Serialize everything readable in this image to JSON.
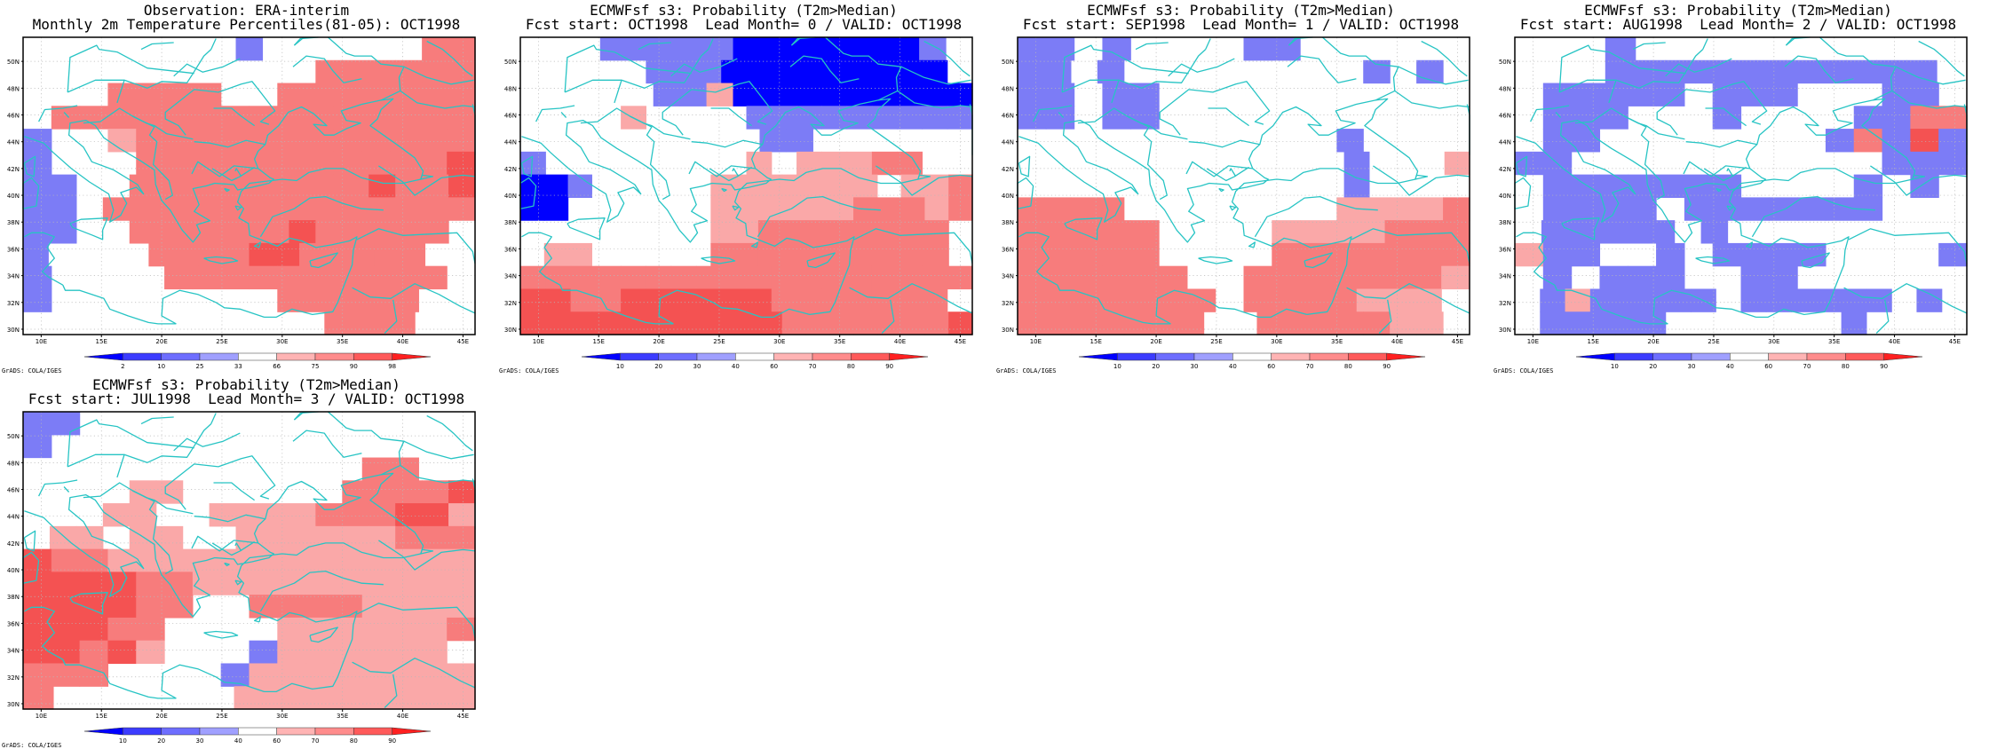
{
  "lat_labels": [
    "30N",
    "32N",
    "34N",
    "36N",
    "38N",
    "40N",
    "42N",
    "44N",
    "46N",
    "48N",
    "50N"
  ],
  "lon_labels": [
    "10E",
    "15E",
    "20E",
    "25E",
    "30E",
    "35E",
    "40E",
    "45E"
  ],
  "grads_credit": "GrADS: COLA/IGES",
  "colors": {
    "coast": "#27c4c4",
    "cells": {
      "-4": "#0000ff",
      "-3": "#4646ff",
      "-2": "#7c7cf6",
      "-1": "#aaaaf6",
      "1": "#faa8a8",
      "2": "#f77c7c",
      "3": "#f45252",
      "4": "#f01d1d",
      "5": "#ff0000"
    }
  },
  "panels": [
    {
      "title1": "Observation: ERA-interim",
      "title2": "Monthly 2m Temperature Percentiles(81-05): OCT1998",
      "colorbar": {
        "labels": [
          "2",
          "10",
          "25",
          "33",
          "66",
          "75",
          "90",
          "98"
        ]
      },
      "grid": [
        "00000000-00000022",
        "00000000000222222",
        "0002222002222222",
        "0222222222222222",
        "-001222222222222",
        "-000222222222223",
        "--002222222223223",
        "--022222222222222",
        "--002222223222220",
        "-00002222332222200",
        "-000022222222220",
        "-000000002222200",
        "000000000022200"
      ]
    },
    {
      "title1": "ECMWFsf s3: Probability (T2m>Median)",
      "title2": "Fcst start: OCT1998  Lead Month= 0 / VALID: OCT1998",
      "colorbar": {
        "labels": [
          "10",
          "20",
          "30",
          "40",
          "60",
          "70",
          "80",
          "90"
        ]
      },
      "grid": [
        "000-----4444444-0",
        "00000---4444444440",
        "00000--1444444444",
        "000010000---------",
        "000000000--000000",
        "-00000000101112200",
        "44-0000011111110112",
        "4400000011111122212",
        "0000000011222222220",
        "0110000022222222220",
        "222222222222222222",
        "332233333322222220",
        "3333333333322222223"
      ]
    },
    {
      "title1": "ECMWFsf s3: Probability (T2m>Median)",
      "title2": "Fcst start: SEP1998  Lead Month= 1 / VALID: OCT1998",
      "colorbar": {
        "labels": [
          "10",
          "20",
          "30",
          "40",
          "60",
          "70",
          "80",
          "90"
        ]
      },
      "grid": [
        "--0-0000--000000",
        "--0-000000000-0-0",
        "--0--00000000000",
        "--0--00000000000",
        "000000000000-0000",
        "0000000000000-0001",
        "0000000000000-0000",
        "22220000000011112",
        "2222200001111222",
        "2222200002222222",
        "2222220022222221",
        "2222222022221110",
        "22222220022222110"
      ]
    },
    {
      "title1": "ECMWFsf s3: Probability (T2m>Median)",
      "title2": "Fcst start: AUG1998  Lead Month= 2 / VALID: OCT1998",
      "colorbar": {
        "labels": [
          "10",
          "20",
          "30",
          "40",
          "60",
          "70",
          "80",
          "90"
        ]
      },
      "grid": [
        "000-00000000000",
        "000-----------0",
        "0-----0---000--0",
        "0---000-0000--22",
        "0--00000000-2-3-",
        "--00000000000---",
        "0-------0000-0-0",
        "0----0-------000",
        "0-----0-000000000",
        "1--00-0----0000-",
        "0-0---00--000000",
        "0-1-----0------0-0",
        "0-----0000000-0000"
      ]
    },
    {
      "title1": "ECMWFsf s3: Probability (T2m>Median)",
      "title2": "Fcst start: JUL1998  Lead Month= 3 / VALID: OCT1998",
      "colorbar": {
        "labels": [
          "10",
          "20",
          "30",
          "40",
          "60",
          "70",
          "80",
          "90"
        ]
      },
      "grid": [
        "--00000000000000",
        "-000000000000000",
        "0000000000002200",
        "00001100000022223",
        "00011001111222331",
        "01101100111111222",
        "3221111111111111",
        "3333221111111111",
        "3333220022221111",
        "3332200001111112",
        "33231000-1111110",
        "2220000-11111111",
        "200000011111111"
      ]
    }
  ]
}
